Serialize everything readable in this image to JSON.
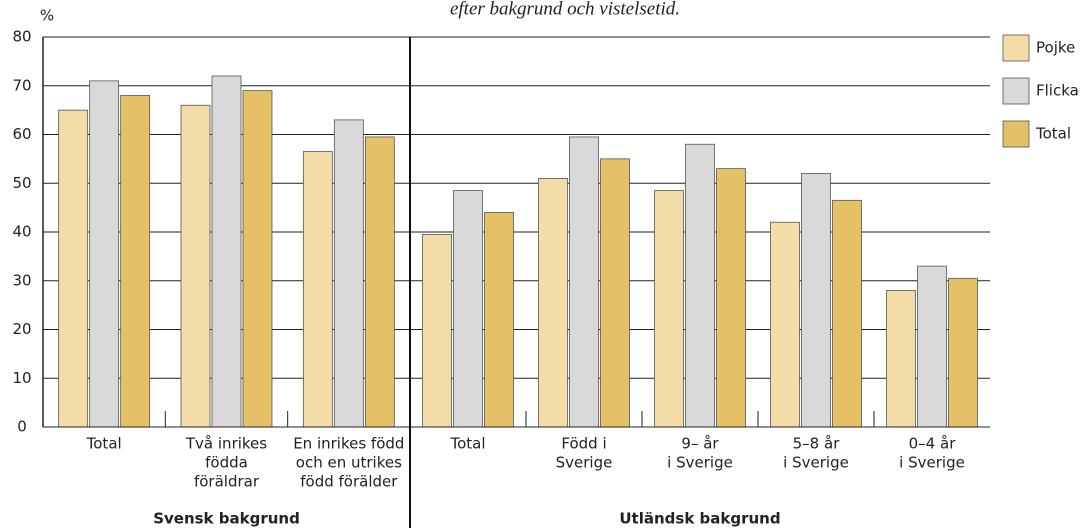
{
  "chart_data": {
    "type": "bar",
    "title": "efter bakgrund och vistelsetid.",
    "y_label": "%",
    "groups": [
      {
        "name": "Svensk bakgrund",
        "categories": [
          [
            "Total"
          ],
          [
            "Två inrikes",
            "födda",
            "föräldrar"
          ],
          [
            "En inrikes född",
            "och en utrikes",
            "född förälder"
          ]
        ]
      },
      {
        "name": "Utländsk bakgrund",
        "categories": [
          [
            "Total"
          ],
          [
            "Född i",
            "Sverige"
          ],
          [
            "9– år",
            "i Sverige"
          ],
          [
            "5–8 år",
            "i Sverige"
          ],
          [
            "0–4 år",
            "i Sverige"
          ]
        ]
      }
    ],
    "series": [
      {
        "name": "Pojke",
        "color": "#f3dca8",
        "values": [
          65,
          66,
          56.5,
          39.5,
          51,
          48.5,
          42,
          28
        ]
      },
      {
        "name": "Flicka",
        "color": "#d9d9d9",
        "values": [
          71,
          72,
          63,
          48.5,
          59.5,
          58,
          52,
          33
        ]
      },
      {
        "name": "Total",
        "color": "#e6c066",
        "values": [
          68,
          69,
          59.5,
          44,
          55,
          53,
          46.5,
          30.5
        ]
      }
    ],
    "ylim": [
      0,
      80
    ],
    "yticks": [
      0,
      10,
      20,
      30,
      40,
      50,
      60,
      70,
      80
    ],
    "grid": true,
    "legend": "right"
  }
}
